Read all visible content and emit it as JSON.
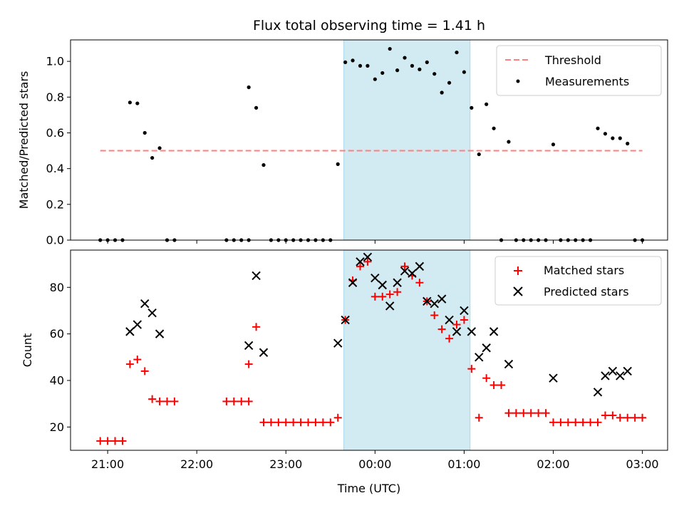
{
  "chart_data": [
    {
      "type": "scatter",
      "title": "Flux total observing time = 1.41 h",
      "xlabel": "",
      "ylabel": "Matched/Predicted stars",
      "ylim": [
        0,
        1.12
      ],
      "yticks": [
        "0.0",
        "0.2",
        "0.4",
        "0.6",
        "0.8",
        "1.0"
      ],
      "xlim": [
        "20:35",
        "03:17"
      ],
      "highlight_span": {
        "start": "23:39",
        "end": "01:04",
        "color": "#add8e6"
      },
      "legend_position": "upper right",
      "legend": [
        "Threshold",
        "Measurements"
      ],
      "threshold": {
        "name": "Threshold",
        "value": 0.5,
        "x_start": "20:55",
        "x_end": "03:00",
        "color": "#ff7f7f"
      },
      "series": [
        {
          "name": "Measurements",
          "color": "#000000",
          "points": [
            [
              "20:55",
              0
            ],
            [
              "21:00",
              0
            ],
            [
              "21:05",
              0
            ],
            [
              "21:10",
              0
            ],
            [
              "21:15",
              0.77
            ],
            [
              "21:20",
              0.765
            ],
            [
              "21:25",
              0.6
            ],
            [
              "21:30",
              0.46
            ],
            [
              "21:35",
              0.515
            ],
            [
              "21:40",
              0
            ],
            [
              "21:45",
              0
            ],
            [
              "22:20",
              0
            ],
            [
              "22:25",
              0
            ],
            [
              "22:30",
              0
            ],
            [
              "22:35",
              0
            ],
            [
              "22:35",
              0.855
            ],
            [
              "22:40",
              0.74
            ],
            [
              "22:45",
              0.42
            ],
            [
              "22:50",
              0
            ],
            [
              "22:55",
              0
            ],
            [
              "23:00",
              0
            ],
            [
              "23:05",
              0
            ],
            [
              "23:10",
              0
            ],
            [
              "23:15",
              0
            ],
            [
              "23:20",
              0
            ],
            [
              "23:25",
              0
            ],
            [
              "23:30",
              0
            ],
            [
              "23:35",
              0.425
            ],
            [
              "23:40",
              0.995
            ],
            [
              "23:45",
              1.005
            ],
            [
              "23:50",
              0.975
            ],
            [
              "23:55",
              0.975
            ],
            [
              "00:00",
              0.9
            ],
            [
              "00:05",
              0.935
            ],
            [
              "00:10",
              1.07
            ],
            [
              "00:15",
              0.95
            ],
            [
              "00:20",
              1.02
            ],
            [
              "00:25",
              0.975
            ],
            [
              "00:30",
              0.955
            ],
            [
              "00:35",
              0.995
            ],
            [
              "00:40",
              0.93
            ],
            [
              "00:45",
              0.825
            ],
            [
              "00:50",
              0.88
            ],
            [
              "00:55",
              1.05
            ],
            [
              "01:00",
              0.94
            ],
            [
              "01:05",
              0.74
            ],
            [
              "01:10",
              0.48
            ],
            [
              "01:15",
              0.76
            ],
            [
              "01:20",
              0.625
            ],
            [
              "01:25",
              0
            ],
            [
              "01:30",
              0.55
            ],
            [
              "01:35",
              0
            ],
            [
              "01:40",
              0
            ],
            [
              "01:45",
              0
            ],
            [
              "01:50",
              0
            ],
            [
              "01:55",
              0
            ],
            [
              "02:00",
              0.535
            ],
            [
              "02:05",
              0
            ],
            [
              "02:10",
              0
            ],
            [
              "02:15",
              0
            ],
            [
              "02:20",
              0
            ],
            [
              "02:25",
              0
            ],
            [
              "02:30",
              0.625
            ],
            [
              "02:35",
              0.595
            ],
            [
              "02:40",
              0.57
            ],
            [
              "02:45",
              0.57
            ],
            [
              "02:50",
              0.54
            ],
            [
              "02:55",
              0
            ],
            [
              "03:00",
              0
            ]
          ]
        }
      ]
    },
    {
      "type": "scatter",
      "title": "",
      "xlabel": "Time (UTC)",
      "ylabel": "Count",
      "ylim": [
        10,
        96
      ],
      "yticks": [
        "20",
        "40",
        "60",
        "80"
      ],
      "xlim": [
        "20:35",
        "03:17"
      ],
      "xticks": [
        "21:00",
        "22:00",
        "23:00",
        "00:00",
        "01:00",
        "02:00",
        "03:00"
      ],
      "highlight_span": {
        "start": "23:39",
        "end": "01:04",
        "color": "#add8e6"
      },
      "legend_position": "upper right",
      "legend": [
        "Matched stars",
        "Predicted stars"
      ],
      "series": [
        {
          "name": "Matched stars",
          "marker": "plus",
          "color": "#ff0000",
          "points": [
            [
              "20:55",
              14
            ],
            [
              "21:00",
              14
            ],
            [
              "21:05",
              14
            ],
            [
              "21:10",
              14
            ],
            [
              "21:15",
              47
            ],
            [
              "21:20",
              49
            ],
            [
              "21:25",
              44
            ],
            [
              "21:30",
              32
            ],
            [
              "21:35",
              31
            ],
            [
              "21:40",
              31
            ],
            [
              "21:45",
              31
            ],
            [
              "22:20",
              31
            ],
            [
              "22:25",
              31
            ],
            [
              "22:30",
              31
            ],
            [
              "22:35",
              31
            ],
            [
              "22:35",
              47
            ],
            [
              "22:40",
              63
            ],
            [
              "22:45",
              22
            ],
            [
              "22:50",
              22
            ],
            [
              "22:55",
              22
            ],
            [
              "23:00",
              22
            ],
            [
              "23:05",
              22
            ],
            [
              "23:10",
              22
            ],
            [
              "23:15",
              22
            ],
            [
              "23:20",
              22
            ],
            [
              "23:25",
              22
            ],
            [
              "23:30",
              22
            ],
            [
              "23:35",
              24
            ],
            [
              "23:40",
              66
            ],
            [
              "23:45",
              83
            ],
            [
              "23:50",
              89
            ],
            [
              "23:55",
              91
            ],
            [
              "00:00",
              76
            ],
            [
              "00:05",
              76
            ],
            [
              "00:10",
              77
            ],
            [
              "00:15",
              78
            ],
            [
              "00:20",
              89
            ],
            [
              "00:25",
              85
            ],
            [
              "00:30",
              82
            ],
            [
              "00:35",
              74
            ],
            [
              "00:40",
              68
            ],
            [
              "00:45",
              62
            ],
            [
              "00:50",
              58
            ],
            [
              "00:55",
              64
            ],
            [
              "01:00",
              66
            ],
            [
              "01:05",
              45
            ],
            [
              "01:10",
              24
            ],
            [
              "01:15",
              41
            ],
            [
              "01:20",
              38
            ],
            [
              "01:25",
              38
            ],
            [
              "01:30",
              26
            ],
            [
              "01:35",
              26
            ],
            [
              "01:40",
              26
            ],
            [
              "01:45",
              26
            ],
            [
              "01:50",
              26
            ],
            [
              "01:55",
              26
            ],
            [
              "02:00",
              22
            ],
            [
              "02:05",
              22
            ],
            [
              "02:10",
              22
            ],
            [
              "02:15",
              22
            ],
            [
              "02:20",
              22
            ],
            [
              "02:25",
              22
            ],
            [
              "02:30",
              22
            ],
            [
              "02:35",
              25
            ],
            [
              "02:40",
              25
            ],
            [
              "02:45",
              24
            ],
            [
              "02:50",
              24
            ],
            [
              "02:55",
              24
            ],
            [
              "03:00",
              24
            ]
          ]
        },
        {
          "name": "Predicted stars",
          "marker": "x",
          "color": "#000000",
          "points": [
            [
              "21:15",
              61
            ],
            [
              "21:20",
              64
            ],
            [
              "21:25",
              73
            ],
            [
              "21:30",
              69
            ],
            [
              "21:35",
              60
            ],
            [
              "22:35",
              55
            ],
            [
              "22:40",
              85
            ],
            [
              "22:45",
              52
            ],
            [
              "23:35",
              56
            ],
            [
              "23:40",
              66
            ],
            [
              "23:45",
              82
            ],
            [
              "23:50",
              91
            ],
            [
              "23:55",
              93
            ],
            [
              "00:00",
              84
            ],
            [
              "00:05",
              81
            ],
            [
              "00:10",
              72
            ],
            [
              "00:15",
              82
            ],
            [
              "00:20",
              87
            ],
            [
              "00:25",
              86
            ],
            [
              "00:30",
              89
            ],
            [
              "00:35",
              74
            ],
            [
              "00:40",
              73
            ],
            [
              "00:45",
              75
            ],
            [
              "00:50",
              66
            ],
            [
              "00:55",
              61
            ],
            [
              "01:00",
              70
            ],
            [
              "01:05",
              61
            ],
            [
              "01:10",
              50
            ],
            [
              "01:15",
              54
            ],
            [
              "01:20",
              61
            ],
            [
              "01:30",
              47
            ],
            [
              "02:00",
              41
            ],
            [
              "02:30",
              35
            ],
            [
              "02:35",
              42
            ],
            [
              "02:40",
              44
            ],
            [
              "02:45",
              42
            ],
            [
              "02:50",
              44
            ]
          ]
        }
      ]
    }
  ]
}
